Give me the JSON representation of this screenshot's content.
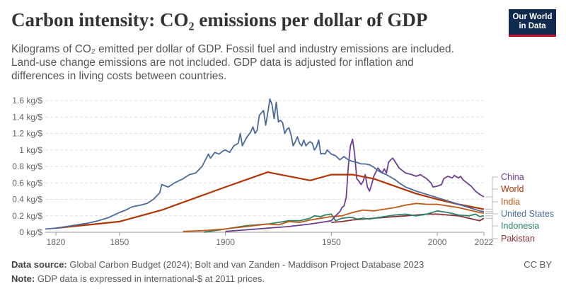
{
  "title": "Carbon intensity: CO₂ emissions per dollar of GDP",
  "subtitle": "Kilograms of CO₂ emitted per dollar of GDP. Fossil fuel and industry emissions are included. Land-use change emissions are not included. GDP data is adjusted for inflation and differences in living costs between countries.",
  "logo": {
    "line1": "Our World",
    "line2": "in Data"
  },
  "footer": {
    "source_label": "Data source:",
    "source_text": "Global Carbon Budget (2024); Bolt and van Zanden - Maddison Project Database 2023",
    "note_label": "Note:",
    "note_text": "GDP data is expressed in international-$ at 2011 prices.",
    "license": "CC BY"
  },
  "colors": {
    "China": "#6d3e91",
    "World": "#b13507",
    "India": "#c05917",
    "United States": "#4c6a9c",
    "Indonesia": "#2c8465",
    "Pakistan": "#883039"
  },
  "chart_data": {
    "type": "line",
    "ylim": [
      0,
      1.6
    ],
    "xlim": [
      1815,
      2022
    ],
    "yticks": [
      {
        "v": 0,
        "label": "0 kg/$"
      },
      {
        "v": 0.2,
        "label": "0.2 kg/$"
      },
      {
        "v": 0.4,
        "label": "0.4 kg/$"
      },
      {
        "v": 0.6,
        "label": "0.6 kg/$"
      },
      {
        "v": 0.8,
        "label": "0.8 kg/$"
      },
      {
        "v": 1.0,
        "label": "1 kg/$"
      },
      {
        "v": 1.2,
        "label": "1.2 kg/$"
      },
      {
        "v": 1.4,
        "label": "1.4 kg/$"
      },
      {
        "v": 1.6,
        "label": "1.6 kg/$"
      }
    ],
    "xticks": [
      {
        "v": 1820,
        "label": "1820"
      },
      {
        "v": 1850,
        "label": "1850"
      },
      {
        "v": 1900,
        "label": "1900"
      },
      {
        "v": 1950,
        "label": "1950"
      },
      {
        "v": 2000,
        "label": "2000"
      },
      {
        "v": 2022,
        "label": "2022"
      }
    ],
    "grid": true,
    "series": [
      {
        "name": "United States",
        "x": [
          1815,
          1820,
          1825,
          1830,
          1835,
          1840,
          1845,
          1850,
          1853,
          1856,
          1860,
          1863,
          1866,
          1869,
          1870,
          1873,
          1876,
          1880,
          1883,
          1886,
          1889,
          1890,
          1892,
          1893,
          1895,
          1897,
          1899,
          1900,
          1902,
          1904,
          1906,
          1907,
          1908,
          1910,
          1912,
          1913,
          1914,
          1915,
          1916,
          1917,
          1918,
          1919,
          1920,
          1921,
          1922,
          1923,
          1924,
          1925,
          1926,
          1927,
          1928,
          1929,
          1930,
          1931,
          1932,
          1933,
          1934,
          1935,
          1936,
          1937,
          1938,
          1939,
          1940,
          1941,
          1942,
          1943,
          1944,
          1945,
          1946,
          1947,
          1948,
          1950,
          1952,
          1954,
          1956,
          1958,
          1960,
          1962,
          1964,
          1966,
          1968,
          1970,
          1972,
          1974,
          1976,
          1978,
          1980,
          1982,
          1985,
          1990,
          1995,
          2000,
          2005,
          2010,
          2015,
          2020,
          2022
        ],
        "y": [
          0.04,
          0.05,
          0.07,
          0.09,
          0.11,
          0.14,
          0.18,
          0.24,
          0.27,
          0.31,
          0.33,
          0.35,
          0.4,
          0.48,
          0.58,
          0.55,
          0.6,
          0.65,
          0.7,
          0.72,
          0.8,
          0.85,
          0.95,
          0.9,
          0.97,
          0.95,
          0.99,
          1.0,
          0.97,
          1.05,
          1.08,
          1.2,
          1.05,
          1.15,
          1.22,
          1.28,
          1.2,
          1.24,
          1.42,
          1.45,
          1.48,
          1.3,
          1.45,
          1.62,
          1.55,
          1.38,
          1.58,
          1.34,
          1.36,
          1.33,
          1.2,
          1.25,
          1.27,
          1.18,
          1.05,
          1.1,
          1.16,
          1.08,
          1.05,
          1.12,
          1.05,
          1.08,
          1.1,
          1.08,
          1.0,
          1.04,
          1.12,
          0.95,
          0.96,
          0.95,
          1.0,
          0.95,
          0.93,
          0.88,
          0.92,
          0.88,
          0.86,
          0.85,
          0.83,
          0.83,
          0.82,
          0.79,
          0.75,
          0.72,
          0.7,
          0.67,
          0.64,
          0.6,
          0.55,
          0.5,
          0.46,
          0.42,
          0.38,
          0.34,
          0.3,
          0.26,
          0.25
        ]
      },
      {
        "name": "World",
        "x": [
          1820,
          1850,
          1870,
          1900,
          1920,
          1940,
          1950,
          1960,
          1970,
          1980,
          1990,
          2000,
          2010,
          2022
        ],
        "y": [
          0.05,
          0.13,
          0.27,
          0.55,
          0.73,
          0.63,
          0.7,
          0.7,
          0.65,
          0.56,
          0.47,
          0.4,
          0.34,
          0.28
        ]
      },
      {
        "name": "China",
        "x": [
          1900,
          1910,
          1920,
          1930,
          1940,
          1945,
          1950,
          1952,
          1954,
          1955,
          1956,
          1957,
          1958,
          1959,
          1960,
          1961,
          1962,
          1963,
          1964,
          1965,
          1966,
          1967,
          1968,
          1969,
          1970,
          1972,
          1974,
          1975,
          1976,
          1977,
          1978,
          1979,
          1980,
          1982,
          1985,
          1988,
          1990,
          1992,
          1995,
          1997,
          1998,
          2000,
          2002,
          2003,
          2005,
          2007,
          2008,
          2010,
          2011,
          2012,
          2014,
          2016,
          2018,
          2020,
          2022
        ],
        "y": [
          0.01,
          0.03,
          0.05,
          0.07,
          0.1,
          0.12,
          0.14,
          0.2,
          0.25,
          0.3,
          0.32,
          0.42,
          0.8,
          1.05,
          1.13,
          0.95,
          0.65,
          0.62,
          0.58,
          0.62,
          0.7,
          0.55,
          0.5,
          0.58,
          0.68,
          0.78,
          0.72,
          0.77,
          0.72,
          0.85,
          0.88,
          0.9,
          0.86,
          0.78,
          0.72,
          0.7,
          0.68,
          0.7,
          0.65,
          0.6,
          0.55,
          0.56,
          0.58,
          0.65,
          0.68,
          0.66,
          0.69,
          0.66,
          0.68,
          0.64,
          0.6,
          0.56,
          0.5,
          0.46,
          0.43
        ]
      },
      {
        "name": "India",
        "x": [
          1880,
          1890,
          1900,
          1910,
          1920,
          1925,
          1930,
          1935,
          1940,
          1945,
          1950,
          1955,
          1960,
          1965,
          1970,
          1975,
          1980,
          1985,
          1990,
          1995,
          2000,
          2005,
          2010,
          2015,
          2020,
          2022
        ],
        "y": [
          0.01,
          0.02,
          0.04,
          0.07,
          0.1,
          0.09,
          0.13,
          0.12,
          0.15,
          0.17,
          0.19,
          0.2,
          0.24,
          0.27,
          0.26,
          0.28,
          0.3,
          0.33,
          0.35,
          0.34,
          0.34,
          0.32,
          0.3,
          0.27,
          0.24,
          0.23
        ]
      },
      {
        "name": "Indonesia",
        "x": [
          1890,
          1900,
          1910,
          1920,
          1925,
          1930,
          1935,
          1940,
          1942,
          1945,
          1947,
          1950,
          1952,
          1955,
          1958,
          1960,
          1962,
          1965,
          1968,
          1970,
          1975,
          1980,
          1985,
          1990,
          1995,
          2000,
          2005,
          2010,
          2015,
          2018,
          2020,
          2022
        ],
        "y": [
          0.0,
          0.04,
          0.08,
          0.1,
          0.12,
          0.14,
          0.14,
          0.17,
          0.2,
          0.19,
          0.21,
          0.22,
          0.14,
          0.17,
          0.18,
          0.18,
          0.16,
          0.17,
          0.16,
          0.17,
          0.19,
          0.21,
          0.22,
          0.2,
          0.22,
          0.26,
          0.24,
          0.21,
          0.2,
          0.22,
          0.19,
          0.2
        ]
      },
      {
        "name": "Pakistan",
        "x": [
          1950,
          1955,
          1960,
          1965,
          1970,
          1975,
          1980,
          1985,
          1990,
          1995,
          2000,
          2005,
          2010,
          2015,
          2020,
          2022
        ],
        "y": [
          0.12,
          0.13,
          0.15,
          0.16,
          0.17,
          0.18,
          0.19,
          0.2,
          0.21,
          0.22,
          0.22,
          0.21,
          0.2,
          0.17,
          0.14,
          0.17
        ]
      }
    ],
    "legend": [
      {
        "name": "China",
        "label": "China"
      },
      {
        "name": "World",
        "label": "World"
      },
      {
        "name": "India",
        "label": "India"
      },
      {
        "name": "United States",
        "label": "United States"
      },
      {
        "name": "Indonesia",
        "label": "Indonesia"
      },
      {
        "name": "Pakistan",
        "label": "Pakistan"
      }
    ]
  }
}
